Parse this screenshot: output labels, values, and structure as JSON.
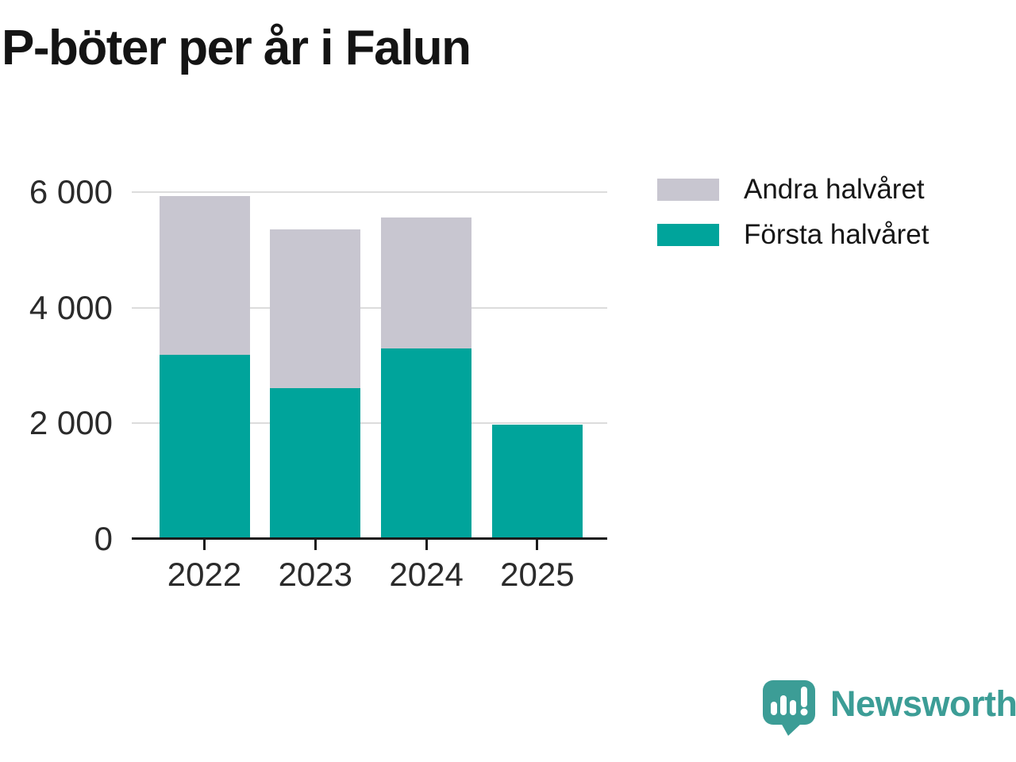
{
  "title": "P-böter per år i Falun",
  "chart_data": {
    "type": "bar",
    "stacked": true,
    "title": "P-böter per år i Falun",
    "categories": [
      "2022",
      "2023",
      "2024",
      "2025"
    ],
    "series": [
      {
        "name": "Första halvåret",
        "color": "#00a49b",
        "values": [
          3190,
          2610,
          3300,
          1980
        ]
      },
      {
        "name": "Andra halvåret",
        "color": "#c8c6d0",
        "values": [
          2740,
          2740,
          2260,
          0
        ]
      }
    ],
    "totals": [
      5930,
      5350,
      5560,
      1980
    ],
    "xlabel": "",
    "ylabel": "",
    "ylim": [
      0,
      6000
    ],
    "yticks": [
      0,
      2000,
      4000,
      6000
    ],
    "ytick_labels": [
      "0",
      "2 000",
      "4 000",
      "6 000"
    ],
    "grid": "horizontal",
    "legend_position": "top-right"
  },
  "legend": [
    {
      "label": "Andra halvåret",
      "color": "#c8c6d0"
    },
    {
      "label": "Första halvåret",
      "color": "#00a49b"
    }
  ],
  "branding": {
    "wordmark": "Newsworthy",
    "color": "#3c9d96"
  },
  "colors": {
    "axis": "#1b1b1b",
    "gridline": "#dcdcdc",
    "text": "#2b2b2b"
  }
}
